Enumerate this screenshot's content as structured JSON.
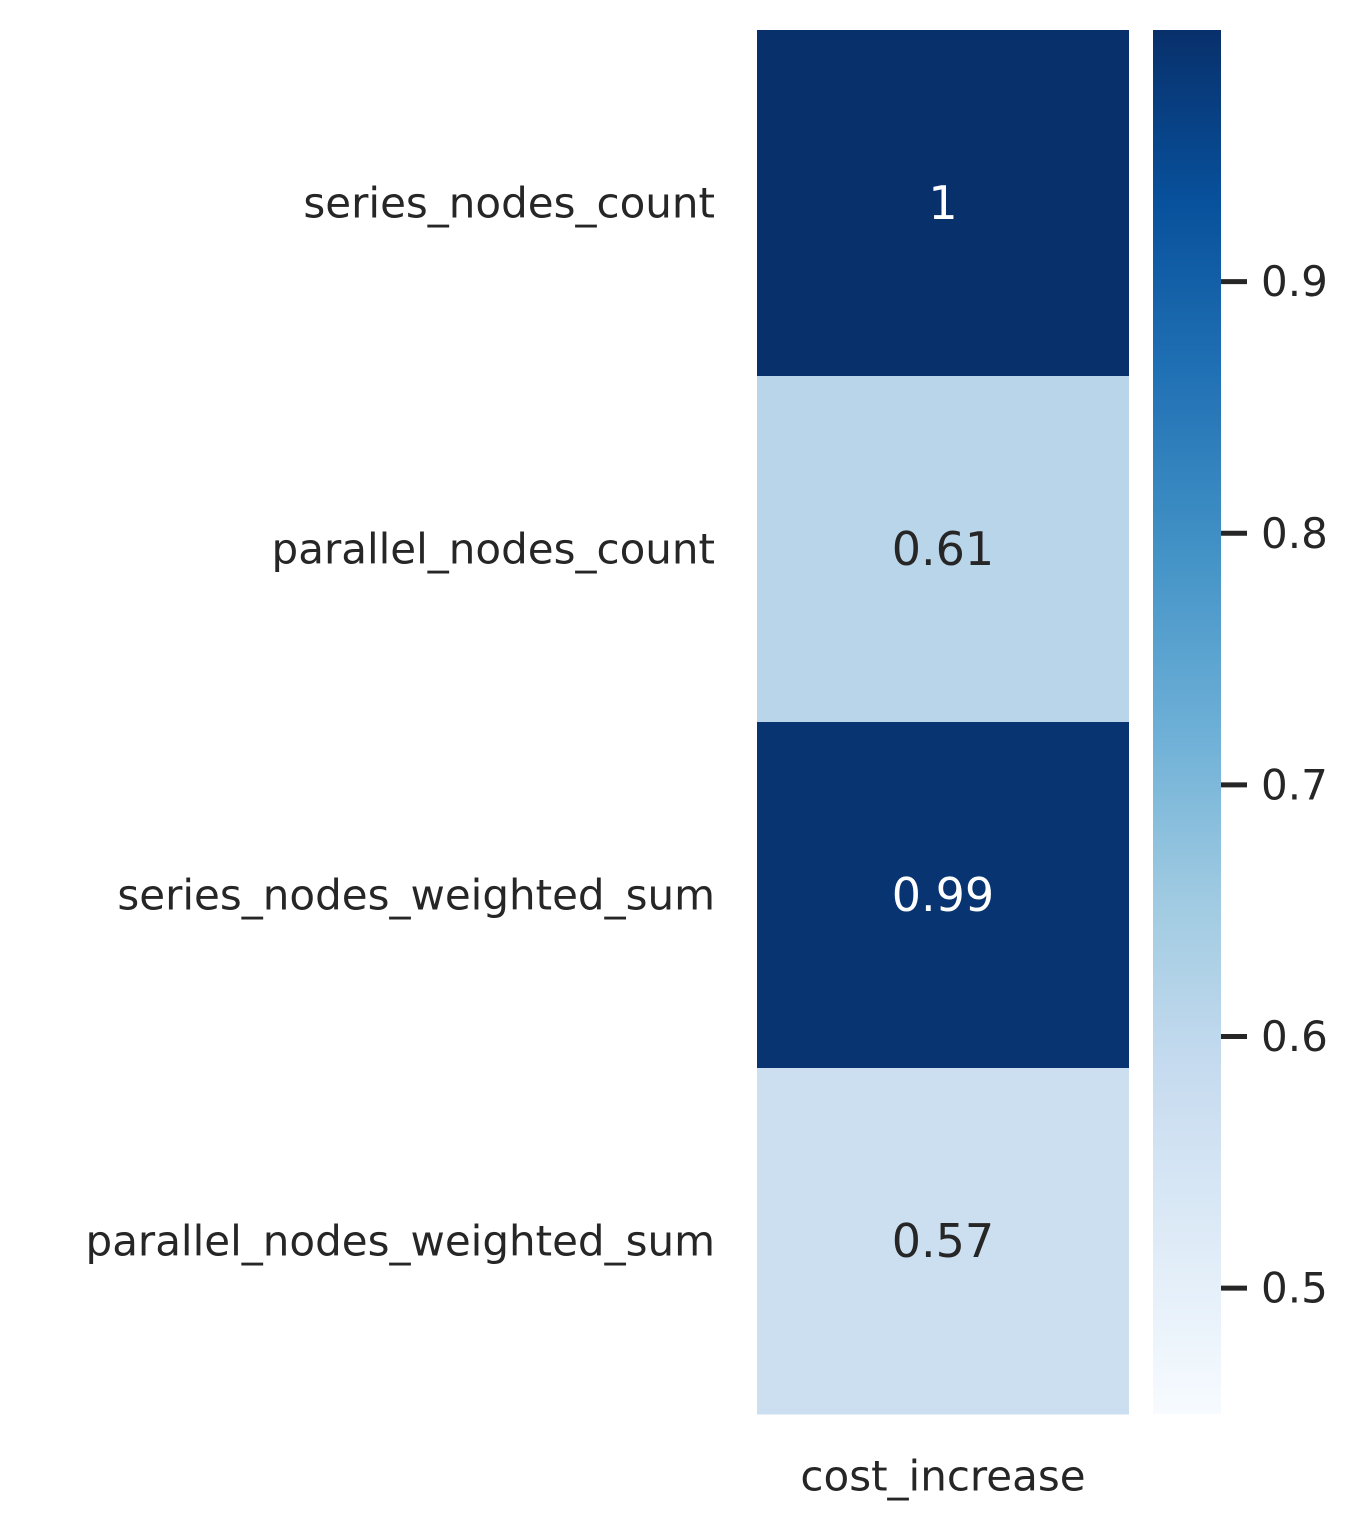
{
  "chart_data": {
    "type": "heatmap",
    "rows": [
      "series_nodes_count",
      "parallel_nodes_count",
      "series_nodes_weighted_sum",
      "parallel_nodes_weighted_sum"
    ],
    "columns": [
      "cost_increase"
    ],
    "values": [
      [
        1
      ],
      [
        0.61
      ],
      [
        0.99
      ],
      [
        0.57
      ]
    ],
    "annotations": [
      "1",
      "0.61",
      "0.99",
      "0.57"
    ],
    "colormap": "Blues",
    "colorbar": {
      "vmin": 0.45,
      "vmax": 1.0,
      "ticks": [
        0.9,
        0.8,
        0.7,
        0.6,
        0.5
      ],
      "tick_labels": [
        "0.9",
        "0.8",
        "0.7",
        "0.6",
        "0.5"
      ]
    },
    "title": "",
    "xlabel": "",
    "ylabel": ""
  }
}
